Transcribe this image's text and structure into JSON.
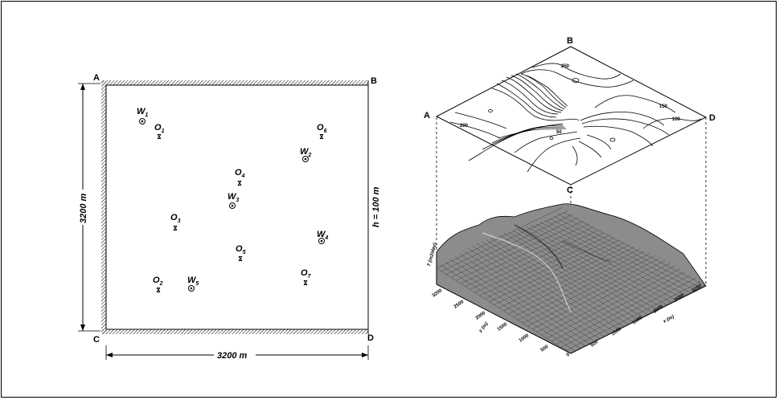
{
  "left_domain": {
    "corners": {
      "A": "A",
      "B": "B",
      "C": "C",
      "D": "D"
    },
    "width_label": "3200 m",
    "height_label": "3200 m",
    "head_label": "h = 100 m",
    "pumping_wells": [
      {
        "id": "W1",
        "letter": "W",
        "sub": "1"
      },
      {
        "id": "W2",
        "letter": "W",
        "sub": "2"
      },
      {
        "id": "W3",
        "letter": "W",
        "sub": "3"
      },
      {
        "id": "W4",
        "letter": "W",
        "sub": "4"
      },
      {
        "id": "W5",
        "letter": "W",
        "sub": "5"
      }
    ],
    "observation_wells": [
      {
        "id": "O1",
        "letter": "O",
        "sub": "1"
      },
      {
        "id": "O2",
        "letter": "O",
        "sub": "2"
      },
      {
        "id": "O3",
        "letter": "O",
        "sub": "3"
      },
      {
        "id": "O4",
        "letter": "O",
        "sub": "4"
      },
      {
        "id": "O5",
        "letter": "O",
        "sub": "5"
      },
      {
        "id": "O6",
        "letter": "O",
        "sub": "6"
      },
      {
        "id": "O7",
        "letter": "O",
        "sub": "7"
      }
    ]
  },
  "right_plot": {
    "corners": {
      "A": "A",
      "B": "B",
      "C": "C",
      "D": "D"
    },
    "contour_labels": [
      "250",
      "200",
      "150",
      "100",
      "50"
    ],
    "z_axis_label": "T (m2/day)",
    "x_axis_label": "x (m)",
    "y_axis_label": "y (m)",
    "tick_labels": [
      "0",
      "500",
      "1000",
      "1500",
      "2000",
      "2500",
      "3200"
    ]
  }
}
